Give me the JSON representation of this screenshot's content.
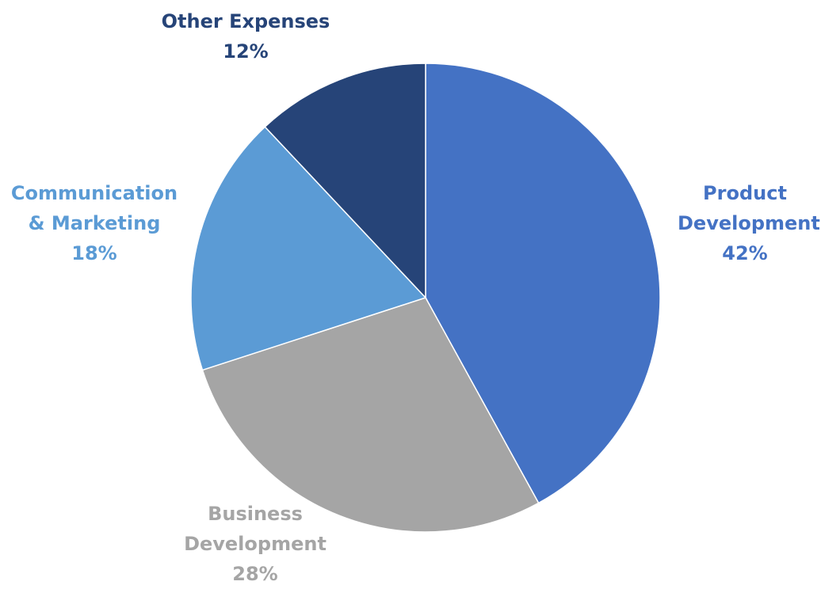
{
  "chart_data": {
    "type": "pie",
    "title": "",
    "slices": [
      {
        "name_lines": [
          "Product",
          "Development"
        ],
        "value": 42,
        "value_label": "42%",
        "color": "#4472C4"
      },
      {
        "name_lines": [
          "Business",
          "Development"
        ],
        "value": 28,
        "value_label": "28%",
        "color": "#A5A5A5"
      },
      {
        "name_lines": [
          "Communication",
          "& Marketing"
        ],
        "value": 18,
        "value_label": "18%",
        "color": "#5B9BD5"
      },
      {
        "name_lines": [
          "Other Expenses"
        ],
        "value": 12,
        "value_label": "12%",
        "color": "#264478"
      }
    ],
    "legend": "none",
    "start_angle": "12 o'clock",
    "direction": "clockwise"
  }
}
